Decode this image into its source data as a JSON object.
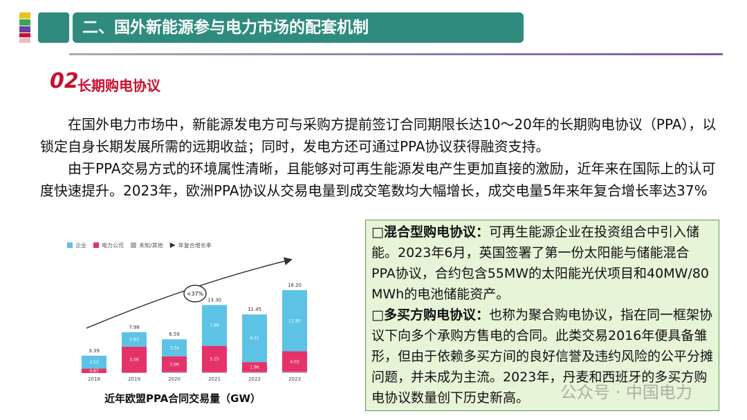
{
  "header": {
    "title": "二、国外新能源参与电力市场的配套机制"
  },
  "section": {
    "number": "02",
    "title": "长期购电协议"
  },
  "paragraphs": [
    "在国外电力市场中，新能源发电方可与采购方提前签订合同期限长达10～20年的长期购电协议（PPA），以锁定自身长期发展所需的远期收益；同时，发电方还可通过PPA协议获得融资支持。",
    "由于PPA交易方式的环境属性清晰，且能够对可再生能源发电产生更加直接的激励，近年来在国际上的认可度快速提升。2023年，欧洲PPA协议从交易电量到成交笔数均大幅增长，成交电量5年来年复合增长率达37%"
  ],
  "box": {
    "items": [
      {
        "term": "□混合型购电协议：",
        "text": "可再生能源企业在投资组合中引入储能。2023年6月，英国签署了第一份太阳能与储能混合PPA协议，合约包含55MW的太阳能光伏项目和40MW/80 MWh的电池储能资产。"
      },
      {
        "term": "□多买方购电协议：",
        "text": "也称为聚合购电协议，指在同一框架协议下向多个承购方售电的合同。此类交易2016年便具备雏形，但由于依赖多买方间的良好信誉及违约风险的公平分摊问题，并未成为主流。2023年，丹麦和西班牙的多买方购电协议数量创下历史新高。"
      }
    ]
  },
  "watermark": "公众号 · 中国电力",
  "chart_data": {
    "type": "stacked-bar",
    "title": "近年欧盟PPA合同交易量（GW）",
    "categories": [
      "2018",
      "2019",
      "2020",
      "2021",
      "2022",
      "2023"
    ],
    "series": [
      {
        "name": "企业",
        "color": "#5cc3e6",
        "show_labels": true,
        "values": [
          2.52,
          2.83,
          3.34,
          7.99,
          9.31,
          11.95
        ]
      },
      {
        "name": "电力公司",
        "color": "#e5336a",
        "show_labels": true,
        "values": [
          0.87,
          5.06,
          3.06,
          5.15,
          1.96,
          4.02
        ]
      },
      {
        "name": "未知/其他",
        "color": "#b0b0b0",
        "show_labels": false,
        "values": [
          0,
          0.09,
          0.19,
          0.16,
          0.18,
          0.23
        ]
      }
    ],
    "totals": {
      "values": [
        3.39,
        7.98,
        6.59,
        13.3,
        11.45,
        16.2
      ],
      "value_labels": [
        "3.39",
        "7.98",
        "6.59",
        "13.30",
        "11.45",
        "16.20"
      ]
    },
    "trend": {
      "name": "年复合增长率",
      "label": "+37%"
    }
  }
}
